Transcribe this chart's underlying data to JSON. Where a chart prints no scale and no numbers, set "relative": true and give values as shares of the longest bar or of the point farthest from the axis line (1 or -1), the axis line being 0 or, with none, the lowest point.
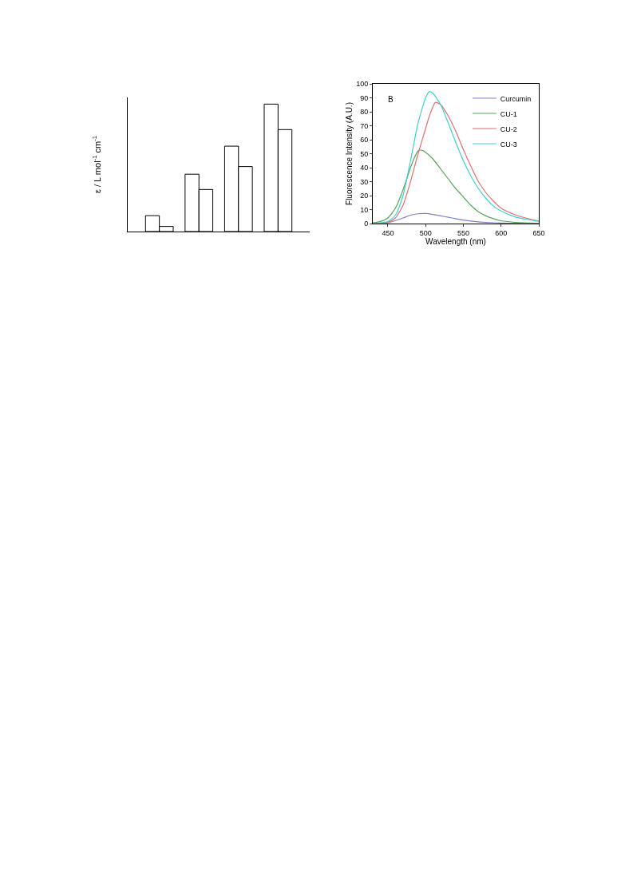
{
  "chart_data": [
    {
      "type": "bar",
      "ylabel": "ε / L mol$^{-1}$ cm$^{-1}$",
      "relative": true,
      "categories": [
        null,
        null,
        null,
        null
      ],
      "grid": false,
      "legend": false,
      "series": [
        {
          "color": "#ffffff",
          "values": [
            0.125,
            0.45,
            0.67,
            1
          ]
        },
        {
          "color": "#ffffff",
          "values": [
            0.04,
            0.33,
            0.51,
            0.8
          ]
        }
      ]
    },
    {
      "type": "line",
      "xlabel": "Wavelength (nm)",
      "ylabel": "Fluorescence Intensity (A.U.)",
      "annotations": [
        "B"
      ],
      "xlim": [
        430,
        650
      ],
      "xticks": [
        450,
        500,
        550,
        600,
        650
      ],
      "ylim": [
        0,
        100
      ],
      "yticks": [
        0,
        10,
        20,
        30,
        40,
        50,
        60,
        70,
        80,
        90,
        100
      ],
      "grid": false,
      "legend": "top right",
      "marker": "none",
      "line_style": "solid",
      "series": [
        {
          "name": "Curcumin",
          "color": "#8080c8",
          "x": [
            430,
            450,
            470,
            480,
            490,
            500,
            510,
            520,
            530,
            540,
            550,
            560,
            570,
            580,
            600,
            620,
            650
          ],
          "values": [
            0,
            0.5,
            4,
            6,
            7,
            7.2,
            6.5,
            5.5,
            4.5,
            3.5,
            2.5,
            1.8,
            1.2,
            0.8,
            0.4,
            0.2,
            0.1
          ]
        },
        {
          "name": "CU-1",
          "color": "#5aa55a",
          "x": [
            430,
            440,
            450,
            460,
            470,
            480,
            485,
            490,
            495,
            500,
            510,
            520,
            530,
            540,
            550,
            560,
            570,
            580,
            590,
            600,
            620,
            650
          ],
          "values": [
            0.5,
            1.5,
            4,
            11,
            24,
            40,
            47,
            52,
            52.5,
            51,
            46,
            39,
            32,
            25,
            19,
            13,
            8.5,
            5.5,
            3.5,
            2,
            0.8,
            0.2
          ]
        },
        {
          "name": "CU-2",
          "color": "#e07070",
          "x": [
            430,
            450,
            460,
            470,
            480,
            490,
            500,
            505,
            510,
            513,
            520,
            530,
            540,
            550,
            560,
            570,
            580,
            590,
            600,
            620,
            640,
            650
          ],
          "values": [
            0,
            1,
            4,
            13,
            30,
            50,
            68,
            77,
            84,
            86.8,
            85,
            77,
            66,
            53,
            41,
            30,
            22,
            16,
            11,
            6,
            3,
            2
          ]
        },
        {
          "name": "CU-3",
          "color": "#40d0d0",
          "x": [
            430,
            450,
            460,
            470,
            480,
            490,
            500,
            505,
            510,
            520,
            530,
            540,
            550,
            560,
            570,
            580,
            590,
            600,
            620,
            640,
            650
          ],
          "values": [
            0,
            1.5,
            6,
            20,
            45,
            72,
            90,
            94.5,
            93,
            85,
            72,
            58,
            45,
            34,
            25,
            18,
            12.5,
            9,
            4.5,
            2.5,
            1.5
          ]
        }
      ]
    }
  ]
}
